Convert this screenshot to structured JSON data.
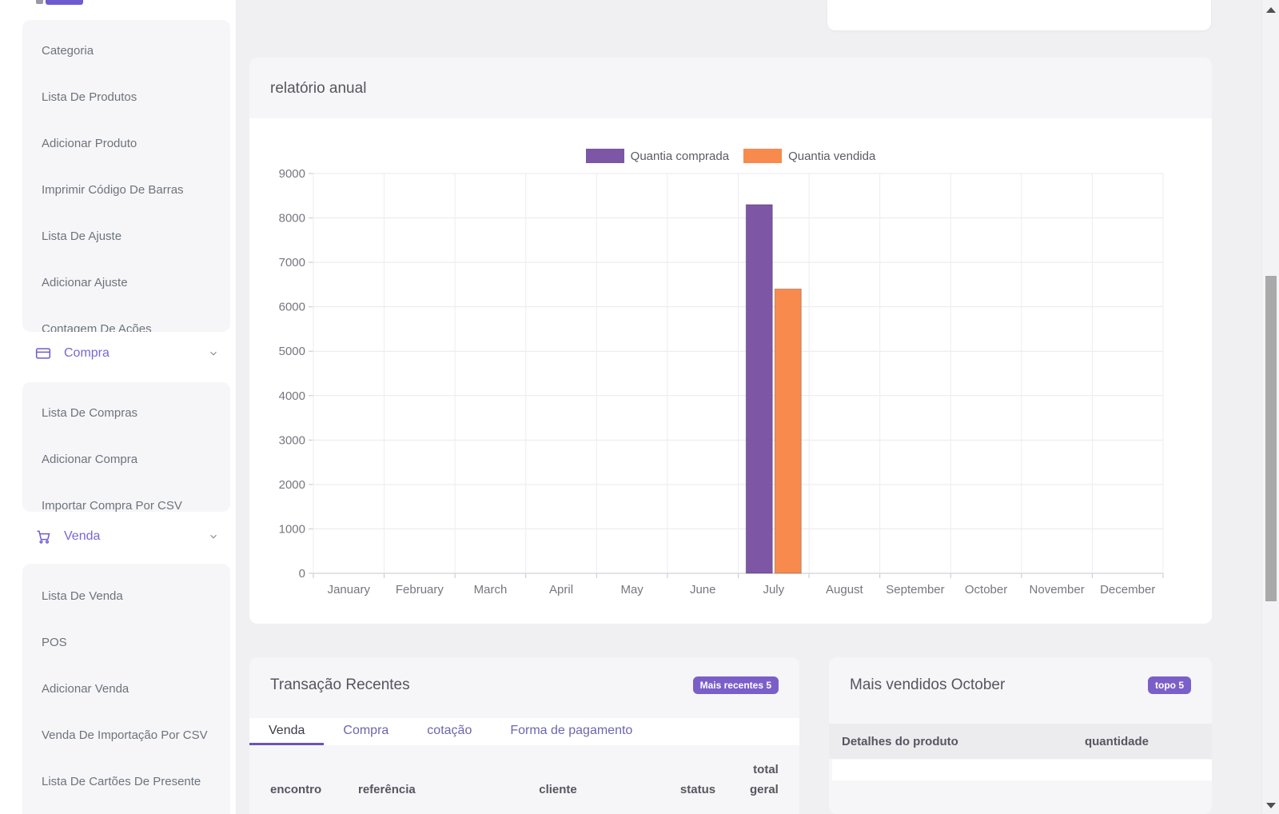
{
  "colors": {
    "accent_purple": "#7b5fc9",
    "sidebar_purple": "#7668d4",
    "chart_purple": "#7d57a5",
    "chart_orange": "#f88a4e"
  },
  "sidebar": {
    "group1": [
      "Categoria",
      "Lista De Produtos",
      "Adicionar Produto",
      "Imprimir Código De Barras",
      "Lista De Ajuste",
      "Adicionar Ajuste",
      "Contagem De Ações"
    ],
    "compra": {
      "label": "Compra"
    },
    "group2": [
      "Lista De Compras",
      "Adicionar Compra",
      "Importar Compra Por CSV"
    ],
    "venda": {
      "label": "Venda"
    },
    "group3": [
      "Lista De Venda",
      "POS",
      "Adicionar Venda",
      "Venda De Importação Por CSV",
      "Lista De Cartões De Presente"
    ]
  },
  "chart_data": {
    "type": "bar",
    "title": "relatório anual",
    "categories": [
      "January",
      "February",
      "March",
      "April",
      "May",
      "June",
      "July",
      "August",
      "September",
      "October",
      "November",
      "December"
    ],
    "series": [
      {
        "name": "Quantia comprada",
        "color": "#7d57a5",
        "values": [
          0,
          0,
          0,
          0,
          0,
          0,
          8300,
          0,
          0,
          0,
          0,
          0
        ]
      },
      {
        "name": "Quantia vendida",
        "color": "#f88a4e",
        "values": [
          0,
          0,
          0,
          0,
          0,
          0,
          6400,
          0,
          0,
          0,
          0,
          0
        ]
      }
    ],
    "ylim": [
      0,
      9000
    ],
    "ytick_step": 1000,
    "legend_position": "top",
    "grid": true
  },
  "transactions": {
    "title": "Transação Recentes",
    "badge": "Mais recentes 5",
    "tabs": [
      "Venda",
      "Compra",
      "cotação",
      "Forma de pagamento"
    ],
    "active_tab": "Venda",
    "columns": [
      "encontro",
      "referência",
      "cliente",
      "status",
      "total geral"
    ]
  },
  "best_sellers": {
    "title": "Mais vendidos October",
    "badge": "topo 5",
    "columns": [
      "Detalhes do produto",
      "quantidade"
    ]
  }
}
